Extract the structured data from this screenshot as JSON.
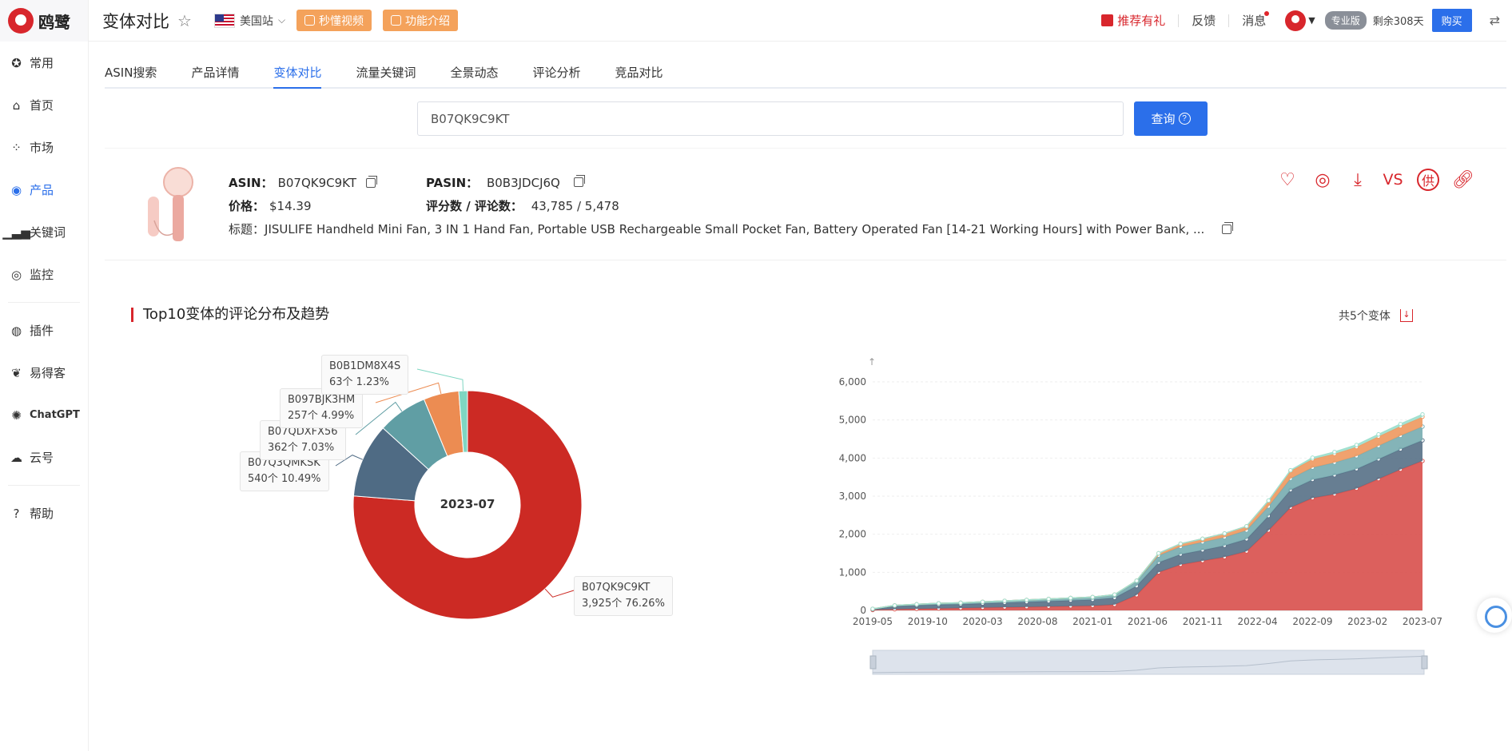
{
  "app": {
    "logo_text": "鸥鹭"
  },
  "sidebar": {
    "items": [
      {
        "label": "常用",
        "icon": "star-badge-icon"
      },
      {
        "label": "首页",
        "icon": "home-icon"
      },
      {
        "label": "市场",
        "icon": "grid-icon"
      },
      {
        "label": "产品",
        "icon": "eye-icon"
      },
      {
        "label": "关键词",
        "icon": "bar-chart-icon"
      },
      {
        "label": "监控",
        "icon": "webcam-icon"
      },
      {
        "label": "插件",
        "icon": "chrome-icon"
      },
      {
        "label": "易得客",
        "icon": "handshake-icon"
      },
      {
        "label": "ChatGPT",
        "icon": "openai-icon"
      },
      {
        "label": "云号",
        "icon": "cloud-icon"
      },
      {
        "label": "帮助",
        "icon": "question-icon"
      }
    ]
  },
  "header": {
    "title": "变体对比",
    "site": "美国站",
    "video_btn": "秒懂视频",
    "intro_btn": "功能介绍",
    "gift": "推荐有礼",
    "feedback": "反馈",
    "messages": "消息",
    "plan": "专业版",
    "remaining": "剩余308天",
    "buy": "购买"
  },
  "tabs": [
    "ASIN搜索",
    "产品详情",
    "变体对比",
    "流量关键词",
    "全景动态",
    "评论分析",
    "竞品对比"
  ],
  "search": {
    "value": "B07QK9C9KT",
    "button": "查询"
  },
  "product": {
    "asin_label": "ASIN：",
    "asin": "B07QK9C9KT",
    "pasin_label": "PASIN：",
    "pasin": "B0B3JDCJ6Q",
    "price_label": "价格：",
    "price": "$14.39",
    "rating_label": "评分数 / 评论数：",
    "rating": "43,785 / 5,478",
    "title_label": "标题：",
    "title": "JISULIFE Handheld Mini Fan, 3 IN 1 Hand Fan, Portable USB Rechargeable Small Pocket Fan, Battery Operated Fan [14-21 Working Hours] with Power Bank, ...",
    "actions": [
      "heart-icon",
      "webcam-icon",
      "download-icon",
      "vs-icon",
      "supply-icon",
      "link-icon"
    ],
    "vs_text": "VS",
    "supply_text": "供"
  },
  "section": {
    "title": "Top10变体的评论分布及趋势",
    "variant_count": "共5个变体"
  },
  "chart_data": [
    {
      "type": "pie",
      "center_label": "2023-07",
      "slices": [
        {
          "name": "B07QK9C9KT",
          "count_text": "3,925个",
          "pct_text": "76.26%",
          "value": 3925,
          "color": "#cc2a24"
        },
        {
          "name": "B07Q3QMKSK",
          "count_text": "540个",
          "pct_text": "10.49%",
          "value": 540,
          "color": "#4f6b84"
        },
        {
          "name": "B07QDXFX56",
          "count_text": "362个",
          "pct_text": "7.03%",
          "value": 362,
          "color": "#609ea4"
        },
        {
          "name": "B097BJK3HM",
          "count_text": "257个",
          "pct_text": "4.99%",
          "value": 257,
          "color": "#ec8c52"
        },
        {
          "name": "B0B1DM8X4S",
          "count_text": "63个",
          "pct_text": "1.23%",
          "value": 63,
          "color": "#7fd6c2"
        }
      ]
    },
    {
      "type": "area",
      "stacked": true,
      "x": [
        "2019-05",
        "2019-07",
        "2019-09",
        "2019-11",
        "2020-01",
        "2020-03",
        "2020-05",
        "2020-07",
        "2020-09",
        "2020-11",
        "2021-01",
        "2021-03",
        "2021-05",
        "2021-07",
        "2021-09",
        "2021-11",
        "2022-01",
        "2022-03",
        "2022-05",
        "2022-07",
        "2022-09",
        "2022-11",
        "2023-01",
        "2023-03",
        "2023-05",
        "2023-07"
      ],
      "x_ticks": [
        "2019-05",
        "2019-10",
        "2020-03",
        "2020-08",
        "2021-01",
        "2021-06",
        "2021-11",
        "2022-04",
        "2022-09",
        "2023-02",
        "2023-07"
      ],
      "y_ticks": [
        "0",
        "1,000",
        "2,000",
        "3,000",
        "4,000",
        "5,000",
        "6,000"
      ],
      "ylim": [
        0,
        6000
      ],
      "series": [
        {
          "color": "#d9534f",
          "values": [
            10,
            30,
            40,
            50,
            60,
            70,
            80,
            90,
            100,
            110,
            120,
            150,
            400,
            1000,
            1200,
            1300,
            1400,
            1550,
            2100,
            2700,
            2950,
            3050,
            3200,
            3450,
            3700,
            3925
          ]
        },
        {
          "color": "#5a7389",
          "values": [
            20,
            80,
            90,
            100,
            100,
            110,
            120,
            130,
            140,
            150,
            160,
            180,
            240,
            260,
            270,
            280,
            300,
            320,
            380,
            460,
            480,
            500,
            510,
            520,
            530,
            540
          ]
        },
        {
          "color": "#79aeb2",
          "values": [
            10,
            20,
            30,
            35,
            40,
            45,
            50,
            55,
            60,
            65,
            70,
            80,
            120,
            180,
            200,
            210,
            220,
            230,
            250,
            300,
            320,
            330,
            340,
            350,
            355,
            362
          ]
        },
        {
          "color": "#ef9a62",
          "values": [
            0,
            0,
            0,
            0,
            0,
            0,
            0,
            0,
            0,
            0,
            0,
            5,
            20,
            60,
            80,
            90,
            100,
            110,
            150,
            200,
            220,
            230,
            240,
            245,
            250,
            257
          ]
        },
        {
          "color": "#9fe0cf",
          "values": [
            0,
            0,
            0,
            0,
            0,
            0,
            0,
            0,
            0,
            0,
            0,
            0,
            0,
            0,
            0,
            0,
            0,
            0,
            5,
            20,
            40,
            50,
            55,
            58,
            60,
            63
          ]
        }
      ]
    }
  ]
}
